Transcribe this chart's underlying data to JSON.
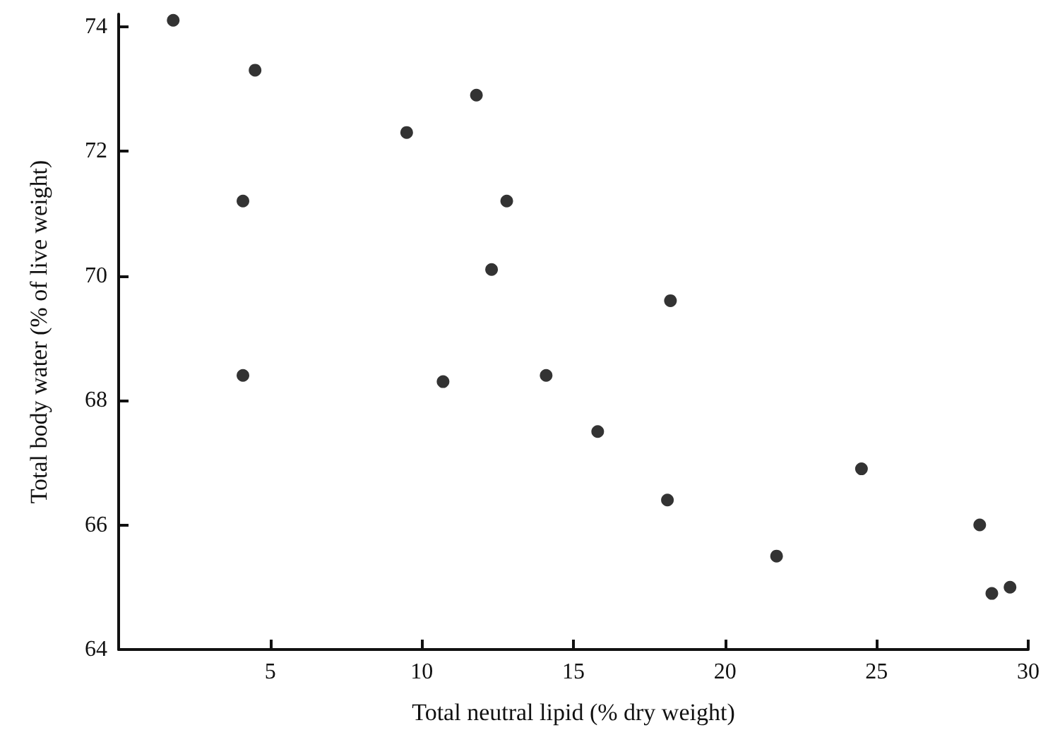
{
  "chart_data": {
    "type": "scatter",
    "xlabel": "Total neutral lipid (% dry weight)",
    "ylabel": "Total body water (% of live weight)",
    "x": [
      1.8,
      4.5,
      11.8,
      9.5,
      4.1,
      12.8,
      12.3,
      18.2,
      4.1,
      10.7,
      14.1,
      15.8,
      24.5,
      18.1,
      28.4,
      21.7,
      28.8,
      29.4
    ],
    "series": [
      {
        "color": "#000000",
        "values": [
          74.1,
          73.3,
          72.9,
          72.3,
          71.2,
          71.2,
          70.1,
          69.6,
          68.4,
          68.3,
          68.4,
          67.5,
          66.9,
          66.4,
          66.0,
          65.5,
          64.9,
          65.0
        ]
      }
    ],
    "xlim": [
      0,
      30
    ],
    "xticks": [
      5,
      10,
      15,
      20,
      25,
      30
    ],
    "ylim": [
      64,
      74.2
    ],
    "yticks": [
      64,
      66,
      68,
      70,
      72,
      74
    ],
    "grid": false,
    "marker": "circle"
  }
}
